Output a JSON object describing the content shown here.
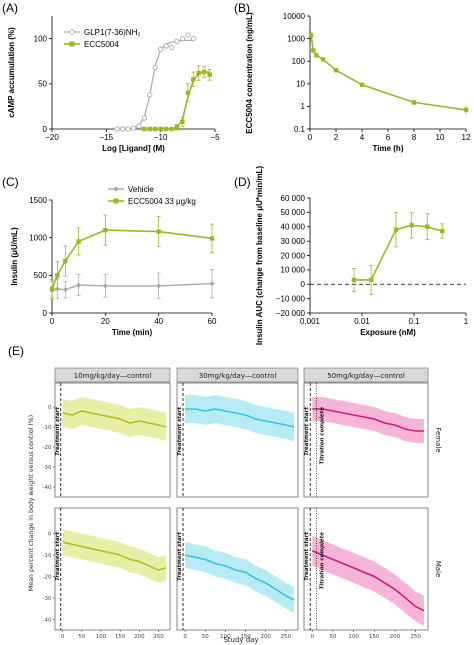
{
  "colors": {
    "glp1": "#a9a9a9",
    "ecc": "#a2b426",
    "vehicle": "#a9a9a9",
    "facet_10": "#a9c22a",
    "facet_30": "#3ec4d8",
    "facet_50": "#cc1e7c",
    "facet_10_band": "#e3ec98",
    "facet_30_band": "#a9e8f1",
    "facet_50_band": "#f4a8cf"
  },
  "panels": {
    "A": "(A)",
    "B": "(B)",
    "C": "(C)",
    "D": "(D)",
    "E": "(E)"
  },
  "chart_data": [
    {
      "id": "A",
      "type": "line",
      "xlabel": "Log [Ligand] (M)",
      "ylabel": "cAMP accumulation (%)",
      "xlim": [
        -20,
        -5
      ],
      "ylim": [
        0,
        125
      ],
      "xticks": [
        "−20",
        "−15",
        "−10",
        "−5"
      ],
      "xtick_values": [
        -20,
        -15,
        -10,
        -5
      ],
      "yticks": [
        "0",
        "50",
        "100"
      ],
      "ytick_values": [
        0,
        50,
        100
      ],
      "legend": [
        "GLP1(7-36)NH₂",
        "ECC5004"
      ],
      "series": [
        {
          "name": "GLP1(7-36)NH₂",
          "x": [
            -14,
            -13.5,
            -13,
            -12.5,
            -12,
            -11.5,
            -11,
            -10.5,
            -10,
            -9.5,
            -9,
            -8.5,
            -8,
            -7.5,
            -7
          ],
          "y": [
            0,
            0,
            0,
            1,
            3,
            12,
            38,
            68,
            88,
            92,
            90,
            97,
            100,
            104,
            100
          ],
          "curve_x": [
            -14,
            -13,
            -12.5,
            -12,
            -11.5,
            -11,
            -10.5,
            -10,
            -9.5,
            -9,
            -8.5,
            -8,
            -7
          ],
          "curve_y": [
            0,
            0,
            1,
            4,
            13,
            38,
            70,
            88,
            94,
            96,
            97,
            98,
            98
          ]
        },
        {
          "name": "ECC5004",
          "x": [
            -11.5,
            -11,
            -10.5,
            -10,
            -9.5,
            -9,
            -8.5,
            -8,
            -7.5,
            -7,
            -6.5,
            -6,
            -5.5
          ],
          "y": [
            0,
            0,
            0,
            0,
            0,
            0,
            2,
            8,
            40,
            55,
            62,
            63,
            60
          ],
          "err": [
            0,
            0,
            0,
            0,
            0,
            0,
            3,
            5,
            10,
            8,
            8,
            6,
            6
          ],
          "curve_x": [
            -11.5,
            -10,
            -9,
            -8.5,
            -8,
            -7.5,
            -7,
            -6.5,
            -6,
            -5.5
          ],
          "curve_y": [
            0,
            0,
            0,
            2,
            10,
            35,
            54,
            61,
            63,
            63
          ]
        }
      ]
    },
    {
      "id": "B",
      "type": "line",
      "xlabel": "Time (h)",
      "ylabel": "ECC5004 concentration (ng/mL)",
      "yscale": "log",
      "xlim": [
        0,
        12
      ],
      "ylim": [
        0.1,
        10000
      ],
      "xticks": [
        "0",
        "2",
        "4",
        "6",
        "8",
        "10",
        "12"
      ],
      "xtick_values": [
        0,
        2,
        4,
        6,
        8,
        10,
        12
      ],
      "yticks": [
        "10000",
        "1000",
        "100",
        "10",
        "1",
        "0.1"
      ],
      "ytick_values": [
        10000,
        1000,
        100,
        10,
        1,
        0.1
      ],
      "series": [
        {
          "name": "",
          "x": [
            0.08,
            0.25,
            0.5,
            1,
            2,
            4,
            8,
            12
          ],
          "y": [
            1400,
            300,
            180,
            120,
            40,
            9,
            1.5,
            0.7
          ],
          "err_factor": [
            1.5,
            1.3,
            1.2,
            1.2,
            1.2,
            1.2,
            1.3,
            1.5
          ]
        }
      ]
    },
    {
      "id": "C",
      "type": "line",
      "xlabel": "Time (min)",
      "ylabel": "Insulin (μU/mL)",
      "xlim": [
        0,
        60
      ],
      "ylim": [
        0,
        1500
      ],
      "xticks": [
        "0",
        "20",
        "40",
        "60"
      ],
      "xtick_values": [
        0,
        20,
        40,
        60
      ],
      "yticks": [
        "0",
        "500",
        "1000",
        "1500"
      ],
      "ytick_values": [
        0,
        500,
        1000,
        1500
      ],
      "legend": [
        "Vehicle",
        "ECC5004 33 μg/kg"
      ],
      "series": [
        {
          "name": "Vehicle",
          "x": [
            0,
            2,
            5,
            10,
            20,
            40,
            60
          ],
          "y": [
            300,
            320,
            310,
            370,
            360,
            360,
            390
          ],
          "err": [
            120,
            130,
            110,
            140,
            150,
            170,
            190
          ]
        },
        {
          "name": "ECC5004 33 μg/kg",
          "x": [
            0,
            2,
            5,
            10,
            20,
            40,
            60
          ],
          "y": [
            320,
            500,
            690,
            950,
            1100,
            1080,
            990
          ],
          "err": [
            120,
            180,
            200,
            180,
            200,
            200,
            190
          ]
        }
      ]
    },
    {
      "id": "D",
      "type": "line",
      "xlabel": "Exposure (nM)",
      "ylabel": "Insulin AUC (change from baseline μU*min/mL)",
      "xscale": "log",
      "xlim": [
        0.001,
        1
      ],
      "ylim": [
        -20000,
        60000
      ],
      "xticks": [
        "0.001",
        "0.01",
        "0.1",
        "1"
      ],
      "xtick_values": [
        0.001,
        0.01,
        0.1,
        1
      ],
      "yticks": [
        "−20 000",
        "−10 000",
        "0",
        "10 000",
        "20 000",
        "30 000",
        "40 000",
        "50 000",
        "60 000"
      ],
      "ytick_values": [
        -20000,
        -10000,
        0,
        10000,
        20000,
        30000,
        40000,
        50000,
        60000
      ],
      "series": [
        {
          "name": "",
          "x": [
            0.007,
            0.015,
            0.045,
            0.09,
            0.18,
            0.35
          ],
          "y": [
            3000,
            3000,
            38000,
            41000,
            40000,
            37000
          ],
          "err": [
            8000,
            10000,
            12000,
            9000,
            9000,
            5000
          ]
        }
      ]
    },
    {
      "id": "E",
      "type": "line",
      "xlabel": "Study day",
      "ylabel": "Mean percent change in body weight versus control (%)",
      "xlim": [
        -20,
        280
      ],
      "ylim": [
        -45,
        12
      ],
      "xticks": [
        "0",
        "50",
        "100",
        "150",
        "200",
        "250"
      ],
      "xtick_values": [
        0,
        50,
        100,
        150,
        200,
        250
      ],
      "yticks": [
        "0",
        "-10",
        "-20",
        "-30",
        "-40"
      ],
      "ytick_values": [
        0,
        -10,
        -20,
        -30,
        -40
      ],
      "columns": [
        "10mg/kg/day—control",
        "30mg/kg/day—control",
        "50mg/kg/day—control"
      ],
      "rows": [
        "Female",
        "Male"
      ],
      "vline_treatment": "Treatment start",
      "vline_titration": "Titration complete",
      "treatment_day": -5,
      "titration_day": 10,
      "x": [
        0,
        25,
        50,
        75,
        100,
        125,
        150,
        175,
        200,
        225,
        250,
        270
      ],
      "panels": [
        {
          "row": "Female",
          "col": "10mg/kg/day—control",
          "y": [
            -3,
            -4,
            -2,
            -3,
            -4,
            -5,
            -6,
            -8,
            -7,
            -8,
            -9,
            -10
          ],
          "band": 7
        },
        {
          "row": "Female",
          "col": "30mg/kg/day—control",
          "y": [
            -1,
            -1,
            -2,
            -1,
            -2,
            -3,
            -4,
            -6,
            -7,
            -8,
            -9,
            -10
          ],
          "band": 7
        },
        {
          "row": "Female",
          "col": "50mg/kg/day—control",
          "y": [
            -1,
            -1,
            -2,
            -3,
            -4,
            -5,
            -6,
            -8,
            -9,
            -11,
            -12,
            -12
          ],
          "band": 6
        },
        {
          "row": "Male",
          "col": "10mg/kg/day—control",
          "y": [
            -4,
            -5,
            -6,
            -7,
            -8,
            -9,
            -10,
            -12,
            -13,
            -15,
            -17,
            -16
          ],
          "band": 6
        },
        {
          "row": "Male",
          "col": "30mg/kg/day—control",
          "y": [
            -10,
            -11,
            -12,
            -14,
            -15,
            -17,
            -18,
            -21,
            -23,
            -26,
            -29,
            -31
          ],
          "band": 6
        },
        {
          "row": "Male",
          "col": "50mg/kg/day—control",
          "y": [
            -8,
            -10,
            -12,
            -14,
            -16,
            -18,
            -20,
            -23,
            -26,
            -30,
            -34,
            -36
          ],
          "band": 7
        }
      ]
    }
  ]
}
